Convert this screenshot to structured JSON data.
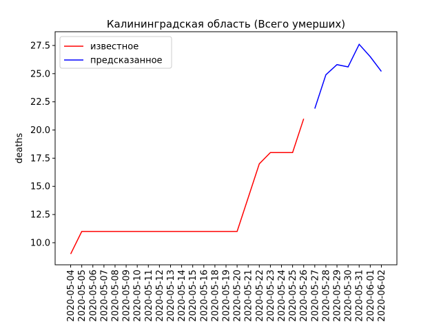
{
  "chart_data": {
    "type": "line",
    "title": "Калининградская область (Всего умерших)",
    "y_label": "deaths",
    "categories": [
      "2020-05-04",
      "2020-05-05",
      "2020-05-06",
      "2020-05-07",
      "2020-05-08",
      "2020-05-09",
      "2020-05-10",
      "2020-05-11",
      "2020-05-12",
      "2020-05-13",
      "2020-05-14",
      "2020-05-15",
      "2020-05-16",
      "2020-05-18",
      "2020-05-19",
      "2020-05-20",
      "2020-05-21",
      "2020-05-22",
      "2020-05-23",
      "2020-05-24",
      "2020-05-25",
      "2020-05-26",
      "2020-05-27",
      "2020-05-28",
      "2020-05-29",
      "2020-05-30",
      "2020-05-31",
      "2020-06-01",
      "2020-06-02"
    ],
    "series": [
      {
        "name": "известное",
        "color": "#ff0000",
        "values": [
          9,
          11,
          11,
          11,
          11,
          11,
          11,
          11,
          11,
          11,
          11,
          11,
          11,
          11,
          11,
          11,
          14,
          17,
          18,
          18,
          18,
          21,
          null,
          null,
          null,
          null,
          null,
          null,
          null
        ]
      },
      {
        "name": "предсказанное",
        "color": "#0000ff",
        "values": [
          null,
          null,
          null,
          null,
          null,
          null,
          null,
          null,
          null,
          null,
          null,
          null,
          null,
          null,
          null,
          null,
          null,
          null,
          null,
          null,
          null,
          null,
          21.9,
          24.9,
          25.8,
          25.6,
          27.6,
          26.5,
          25.2
        ]
      }
    ],
    "ylim": [
      8.04,
      28.72
    ],
    "yticks": [
      {
        "value": 10,
        "label": "10.0"
      },
      {
        "value": 12.5,
        "label": "12.5"
      },
      {
        "value": 15,
        "label": "15.0"
      },
      {
        "value": 17.5,
        "label": "17.5"
      },
      {
        "value": 20,
        "label": "20.0"
      },
      {
        "value": 22.5,
        "label": "22.5"
      },
      {
        "value": 25,
        "label": "25.0"
      },
      {
        "value": 27.5,
        "label": "27.5"
      }
    ],
    "legend": "upper left"
  }
}
